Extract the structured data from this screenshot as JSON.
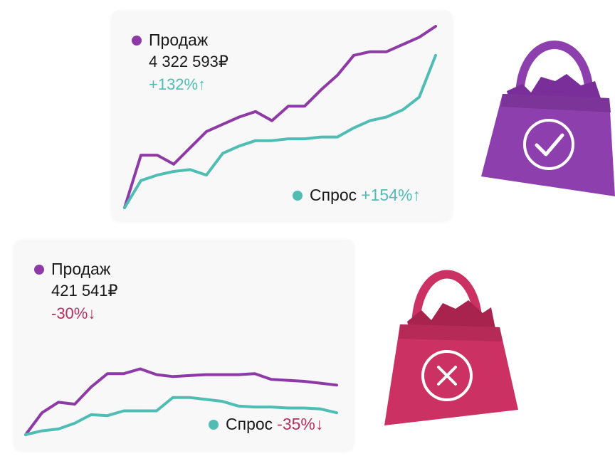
{
  "colors": {
    "sales": "#8e3aa6",
    "demand": "#4fbdb3",
    "up": "#4fbdb3",
    "down": "#b3325c",
    "bag_good": "#8e3fae",
    "bag_bad": "#cc3163"
  },
  "icons": {
    "good_bag": "shopping-bag-check-icon",
    "bad_bag": "shopping-bag-x-icon"
  },
  "cards": [
    {
      "sales_label": "Продаж",
      "sales_value": "4 322 593₽",
      "sales_change": "+132%↑",
      "demand_label": "Спрос",
      "demand_change": "+154%↑"
    },
    {
      "sales_label": "Продаж",
      "sales_value": "421 541₽",
      "sales_change": "-30%↓",
      "demand_label": "Спрос",
      "demand_change": "-35%↓"
    }
  ],
  "chart_data": [
    {
      "type": "line",
      "x": [
        0,
        1,
        2,
        3,
        4,
        5,
        6,
        7,
        8,
        9,
        10,
        11,
        12,
        13,
        14,
        15,
        16,
        17,
        18,
        19
      ],
      "ylim": [
        0,
        100
      ],
      "series": [
        {
          "name": "Продаж",
          "values": [
            0,
            29,
            29,
            24,
            33,
            42,
            46,
            50,
            53,
            48,
            56,
            56,
            65,
            73,
            84,
            86,
            86,
            90,
            94,
            100
          ]
        },
        {
          "name": "Спрос",
          "values": [
            0,
            15,
            18,
            20,
            21,
            18,
            30,
            34,
            37,
            37,
            38,
            38,
            39,
            39,
            44,
            48,
            50,
            54,
            61,
            84
          ]
        }
      ]
    },
    {
      "type": "line",
      "x": [
        0,
        1,
        2,
        3,
        4,
        5,
        6,
        7,
        8,
        9,
        10,
        11,
        12,
        13,
        14,
        15,
        16,
        17,
        18,
        19
      ],
      "ylim": [
        0,
        100
      ],
      "series": [
        {
          "name": "Продаж",
          "values": [
            0,
            23,
            34,
            32,
            50,
            64,
            64,
            69,
            63,
            61,
            62,
            63,
            63,
            63,
            64,
            58,
            57,
            56,
            54,
            52
          ]
        },
        {
          "name": "Спрос",
          "values": [
            0,
            4,
            6,
            12,
            21,
            20,
            25,
            25,
            25,
            39,
            39,
            37,
            35,
            30,
            29,
            29,
            28,
            28,
            27,
            23
          ]
        }
      ]
    }
  ]
}
